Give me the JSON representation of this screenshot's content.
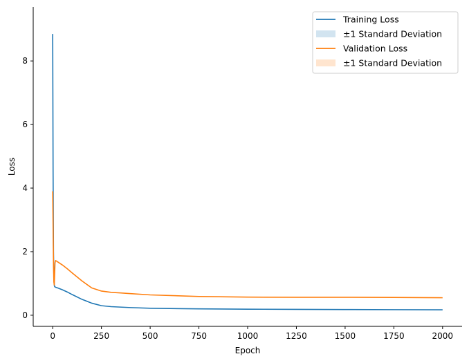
{
  "chart_data": {
    "type": "line",
    "title": "",
    "xlabel": "Epoch",
    "ylabel": "Loss",
    "xlim": [
      -100,
      2100
    ],
    "ylim": [
      -0.35,
      9.7
    ],
    "xticks": [
      0,
      250,
      500,
      750,
      1000,
      1250,
      1500,
      1750,
      2000
    ],
    "yticks": [
      0,
      2,
      4,
      6,
      8
    ],
    "grid": false,
    "legend_position": "top-right",
    "series": [
      {
        "name": "Training Loss",
        "color": "#1f77b4",
        "x": [
          0,
          2,
          4,
          6,
          8,
          10,
          15,
          25,
          50,
          75,
          100,
          150,
          200,
          250,
          300,
          400,
          500,
          750,
          1000,
          1250,
          1500,
          1750,
          2000
        ],
        "y": [
          8.85,
          4.5,
          2.0,
          1.2,
          0.95,
          0.9,
          0.88,
          0.86,
          0.8,
          0.73,
          0.65,
          0.5,
          0.38,
          0.3,
          0.27,
          0.24,
          0.22,
          0.2,
          0.19,
          0.185,
          0.18,
          0.175,
          0.17
        ]
      },
      {
        "name": "±1 Standard Deviation",
        "kind": "band",
        "color": "#1f77b4"
      },
      {
        "name": "Validation Loss",
        "color": "#ff7f0e",
        "x": [
          0,
          2,
          4,
          6,
          8,
          10,
          12,
          15,
          20,
          30,
          50,
          75,
          100,
          150,
          200,
          250,
          300,
          350,
          400,
          500,
          750,
          1000,
          1250,
          1500,
          1750,
          1900,
          2000
        ],
        "y": [
          3.9,
          2.8,
          1.6,
          1.05,
          0.95,
          1.3,
          1.65,
          1.72,
          1.7,
          1.66,
          1.58,
          1.46,
          1.33,
          1.08,
          0.86,
          0.76,
          0.72,
          0.7,
          0.68,
          0.64,
          0.59,
          0.57,
          0.565,
          0.565,
          0.56,
          0.555,
          0.55
        ]
      },
      {
        "name": "±1 Standard Deviation",
        "kind": "band",
        "color": "#ff7f0e"
      }
    ]
  }
}
